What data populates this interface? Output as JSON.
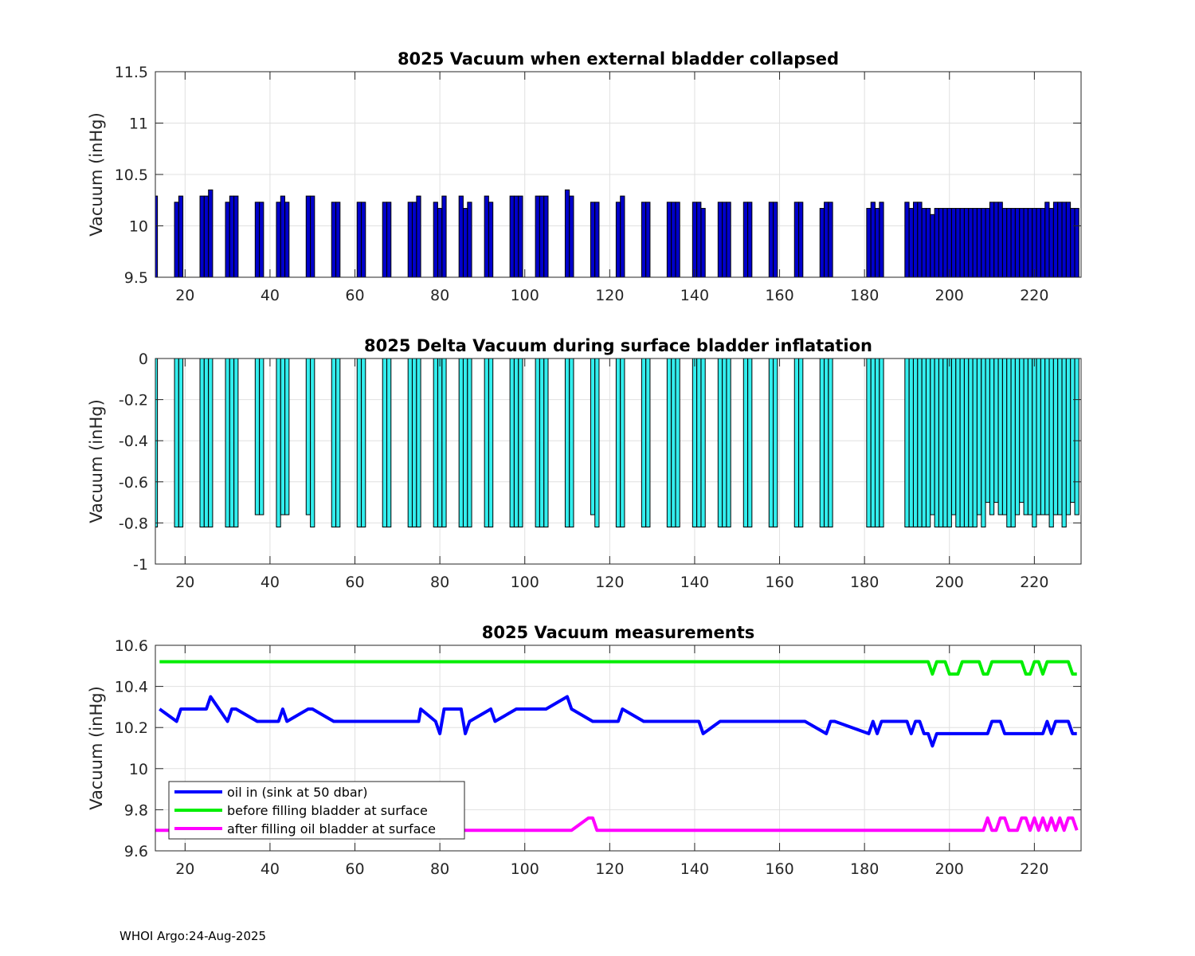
{
  "footer": "WHOI Argo:24-Aug-2025",
  "colors": {
    "bar1": "#0000cc",
    "bar2": "#33eeee",
    "oil_in": "#0000ff",
    "before": "#00ee00",
    "after": "#ff00ff",
    "grid": "#e0e0e0"
  },
  "chart_data": [
    {
      "type": "bar",
      "title": "8025 Vacuum when external bladder collapsed",
      "xlabel": "",
      "ylabel": "Vacuum (inHg)",
      "xlim": [
        13,
        231
      ],
      "ylim": [
        9.5,
        11.5
      ],
      "xticks": [
        20,
        40,
        60,
        80,
        100,
        120,
        140,
        160,
        180,
        200,
        220
      ],
      "yticks": [
        9.5,
        10,
        10.5,
        11,
        11.5
      ],
      "ytick_labels": [
        "9.5",
        "10",
        "10.5",
        "11",
        "11.5"
      ],
      "grid": true,
      "x": [
        13,
        18,
        19,
        24,
        25,
        26,
        30,
        31,
        32,
        37,
        38,
        42,
        43,
        44,
        49,
        50,
        55,
        56,
        61,
        62,
        67,
        68,
        73,
        74,
        75,
        79,
        80,
        81,
        85,
        86,
        87,
        91,
        92,
        97,
        98,
        99,
        103,
        104,
        105,
        110,
        111,
        116,
        117,
        122,
        123,
        128,
        129,
        134,
        135,
        136,
        140,
        141,
        142,
        146,
        147,
        148,
        152,
        153,
        158,
        159,
        164,
        165,
        170,
        171,
        172,
        181,
        182,
        183,
        184,
        190,
        191,
        192,
        193,
        194,
        195,
        196,
        197,
        198,
        199,
        200,
        201,
        202,
        203,
        204,
        205,
        206,
        207,
        208,
        209,
        210,
        211,
        212,
        213,
        214,
        215,
        216,
        217,
        218,
        219,
        220,
        221,
        222,
        223,
        224,
        225,
        226,
        227,
        228,
        229,
        230
      ],
      "values": [
        10.29,
        10.23,
        10.29,
        10.29,
        10.29,
        10.35,
        10.23,
        10.29,
        10.29,
        10.23,
        10.23,
        10.23,
        10.29,
        10.23,
        10.29,
        10.29,
        10.23,
        10.23,
        10.23,
        10.23,
        10.23,
        10.23,
        10.23,
        10.23,
        10.29,
        10.23,
        10.17,
        10.29,
        10.29,
        10.17,
        10.23,
        10.29,
        10.23,
        10.29,
        10.29,
        10.29,
        10.29,
        10.29,
        10.29,
        10.35,
        10.29,
        10.23,
        10.23,
        10.23,
        10.29,
        10.23,
        10.23,
        10.23,
        10.23,
        10.23,
        10.23,
        10.23,
        10.17,
        10.23,
        10.23,
        10.23,
        10.23,
        10.23,
        10.23,
        10.23,
        10.23,
        10.23,
        10.17,
        10.23,
        10.23,
        10.17,
        10.23,
        10.17,
        10.23,
        10.23,
        10.17,
        10.23,
        10.23,
        10.17,
        10.17,
        10.11,
        10.17,
        10.17,
        10.17,
        10.17,
        10.17,
        10.17,
        10.17,
        10.17,
        10.17,
        10.17,
        10.17,
        10.17,
        10.17,
        10.23,
        10.23,
        10.23,
        10.17,
        10.17,
        10.17,
        10.17,
        10.17,
        10.17,
        10.17,
        10.17,
        10.17,
        10.17,
        10.23,
        10.17,
        10.23,
        10.23,
        10.23,
        10.23,
        10.17,
        10.17
      ]
    },
    {
      "type": "bar",
      "title": "8025 Delta Vacuum during surface bladder inflatation",
      "xlabel": "",
      "ylabel": "Vacuum (inHg)",
      "xlim": [
        13,
        231
      ],
      "ylim": [
        -1,
        0
      ],
      "xticks": [
        20,
        40,
        60,
        80,
        100,
        120,
        140,
        160,
        180,
        200,
        220
      ],
      "yticks": [
        -1,
        -0.8,
        -0.6,
        -0.4,
        -0.2,
        0
      ],
      "ytick_labels": [
        "-1",
        "-0.8",
        "-0.6",
        "-0.4",
        "-0.2",
        "0"
      ],
      "grid": true,
      "x": [
        13,
        18,
        19,
        24,
        25,
        26,
        30,
        31,
        32,
        37,
        38,
        42,
        43,
        44,
        49,
        50,
        55,
        56,
        61,
        62,
        67,
        68,
        73,
        74,
        75,
        79,
        80,
        81,
        85,
        86,
        87,
        91,
        92,
        97,
        98,
        99,
        103,
        104,
        105,
        110,
        111,
        116,
        117,
        122,
        123,
        128,
        129,
        134,
        135,
        136,
        140,
        141,
        142,
        146,
        147,
        148,
        152,
        153,
        158,
        159,
        164,
        165,
        170,
        171,
        172,
        181,
        182,
        183,
        184,
        190,
        191,
        192,
        193,
        194,
        195,
        196,
        197,
        198,
        199,
        200,
        201,
        202,
        203,
        204,
        205,
        206,
        207,
        208,
        209,
        210,
        211,
        212,
        213,
        214,
        215,
        216,
        217,
        218,
        219,
        220,
        221,
        222,
        223,
        224,
        225,
        226,
        227,
        228,
        229,
        230
      ],
      "values": [
        -0.82,
        -0.82,
        -0.82,
        -0.82,
        -0.82,
        -0.82,
        -0.82,
        -0.82,
        -0.82,
        -0.76,
        -0.76,
        -0.82,
        -0.76,
        -0.76,
        -0.76,
        -0.82,
        -0.82,
        -0.82,
        -0.82,
        -0.82,
        -0.82,
        -0.82,
        -0.82,
        -0.82,
        -0.82,
        -0.82,
        -0.82,
        -0.82,
        -0.82,
        -0.82,
        -0.82,
        -0.82,
        -0.82,
        -0.82,
        -0.82,
        -0.82,
        -0.82,
        -0.82,
        -0.82,
        -0.82,
        -0.82,
        -0.76,
        -0.82,
        -0.82,
        -0.82,
        -0.82,
        -0.82,
        -0.82,
        -0.82,
        -0.82,
        -0.82,
        -0.82,
        -0.82,
        -0.82,
        -0.82,
        -0.82,
        -0.82,
        -0.82,
        -0.82,
        -0.82,
        -0.82,
        -0.82,
        -0.82,
        -0.82,
        -0.82,
        -0.82,
        -0.82,
        -0.82,
        -0.82,
        -0.82,
        -0.82,
        -0.82,
        -0.82,
        -0.82,
        -0.82,
        -0.76,
        -0.82,
        -0.82,
        -0.82,
        -0.82,
        -0.76,
        -0.82,
        -0.82,
        -0.82,
        -0.82,
        -0.82,
        -0.76,
        -0.82,
        -0.7,
        -0.76,
        -0.7,
        -0.76,
        -0.76,
        -0.82,
        -0.82,
        -0.76,
        -0.7,
        -0.76,
        -0.76,
        -0.82,
        -0.76,
        -0.76,
        -0.76,
        -0.82,
        -0.76,
        -0.76,
        -0.82,
        -0.76,
        -0.7,
        -0.76
      ]
    },
    {
      "type": "line",
      "title": "8025 Vacuum measurements",
      "xlabel": "",
      "ylabel": "Vacuum (inHg)",
      "xlim": [
        13,
        231
      ],
      "ylim": [
        9.6,
        10.6
      ],
      "xticks": [
        20,
        40,
        60,
        80,
        100,
        120,
        140,
        160,
        180,
        200,
        220
      ],
      "yticks": [
        9.6,
        9.8,
        10,
        10.2,
        10.4,
        10.6
      ],
      "ytick_labels": [
        "9.6",
        "9.8",
        "10",
        "10.2",
        "10.4",
        "10.6"
      ],
      "grid": true,
      "legend_position": "bottom-left",
      "series": [
        {
          "name": "oil in (sink at 50 dbar)",
          "color": "#0000ff",
          "points": [
            [
              14,
              10.29
            ],
            [
              18,
              10.23
            ],
            [
              19,
              10.29
            ],
            [
              25,
              10.29
            ],
            [
              26,
              10.35
            ],
            [
              30,
              10.23
            ],
            [
              31,
              10.29
            ],
            [
              32,
              10.29
            ],
            [
              37,
              10.23
            ],
            [
              42,
              10.23
            ],
            [
              43,
              10.29
            ],
            [
              44,
              10.23
            ],
            [
              49,
              10.29
            ],
            [
              50,
              10.29
            ],
            [
              55,
              10.23
            ],
            [
              75,
              10.23
            ],
            [
              75.5,
              10.29
            ],
            [
              79,
              10.23
            ],
            [
              80,
              10.17
            ],
            [
              81,
              10.29
            ],
            [
              85,
              10.29
            ],
            [
              86,
              10.17
            ],
            [
              87,
              10.23
            ],
            [
              92,
              10.29
            ],
            [
              93,
              10.23
            ],
            [
              98,
              10.29
            ],
            [
              105,
              10.29
            ],
            [
              110,
              10.35
            ],
            [
              111,
              10.29
            ],
            [
              116,
              10.23
            ],
            [
              122,
              10.23
            ],
            [
              123,
              10.29
            ],
            [
              128,
              10.23
            ],
            [
              141,
              10.23
            ],
            [
              142,
              10.17
            ],
            [
              146,
              10.23
            ],
            [
              166,
              10.23
            ],
            [
              171,
              10.17
            ],
            [
              172,
              10.23
            ],
            [
              173,
              10.23
            ],
            [
              181,
              10.17
            ],
            [
              182,
              10.23
            ],
            [
              183,
              10.17
            ],
            [
              184,
              10.23
            ],
            [
              190,
              10.23
            ],
            [
              191,
              10.17
            ],
            [
              192,
              10.23
            ],
            [
              193,
              10.23
            ],
            [
              194,
              10.17
            ],
            [
              195,
              10.17
            ],
            [
              196,
              10.11
            ],
            [
              197,
              10.17
            ],
            [
              209,
              10.17
            ],
            [
              210,
              10.23
            ],
            [
              212,
              10.23
            ],
            [
              213,
              10.17
            ],
            [
              222,
              10.17
            ],
            [
              223,
              10.23
            ],
            [
              224,
              10.17
            ],
            [
              225,
              10.23
            ],
            [
              228,
              10.23
            ],
            [
              229,
              10.17
            ],
            [
              230,
              10.17
            ]
          ]
        },
        {
          "name": "before filling bladder at surface",
          "color": "#00ee00",
          "points": [
            [
              14,
              10.52
            ],
            [
              195,
              10.52
            ],
            [
              196,
              10.46
            ],
            [
              197,
              10.52
            ],
            [
              199,
              10.52
            ],
            [
              200,
              10.46
            ],
            [
              202,
              10.46
            ],
            [
              203,
              10.52
            ],
            [
              207,
              10.52
            ],
            [
              208,
              10.46
            ],
            [
              209,
              10.46
            ],
            [
              210,
              10.52
            ],
            [
              217,
              10.52
            ],
            [
              218,
              10.46
            ],
            [
              219,
              10.46
            ],
            [
              220,
              10.52
            ],
            [
              221,
              10.52
            ],
            [
              222,
              10.46
            ],
            [
              223,
              10.52
            ],
            [
              228,
              10.52
            ],
            [
              229,
              10.46
            ],
            [
              230,
              10.46
            ]
          ]
        },
        {
          "name": "after filling oil bladder at surface",
          "color": "#ff00ff",
          "points": [
            [
              13,
              9.7
            ],
            [
              111,
              9.7
            ],
            [
              115,
              9.76
            ],
            [
              116,
              9.76
            ],
            [
              117,
              9.7
            ],
            [
              208,
              9.7
            ],
            [
              209,
              9.76
            ],
            [
              210,
              9.7
            ],
            [
              211,
              9.7
            ],
            [
              212,
              9.76
            ],
            [
              213,
              9.76
            ],
            [
              214,
              9.7
            ],
            [
              216,
              9.7
            ],
            [
              217,
              9.76
            ],
            [
              218,
              9.76
            ],
            [
              219,
              9.7
            ],
            [
              220,
              9.76
            ],
            [
              221,
              9.7
            ],
            [
              222,
              9.76
            ],
            [
              223,
              9.7
            ],
            [
              224,
              9.76
            ],
            [
              225,
              9.7
            ],
            [
              226,
              9.76
            ],
            [
              227,
              9.7
            ],
            [
              228,
              9.76
            ],
            [
              229,
              9.76
            ],
            [
              230,
              9.7
            ]
          ]
        }
      ]
    }
  ]
}
